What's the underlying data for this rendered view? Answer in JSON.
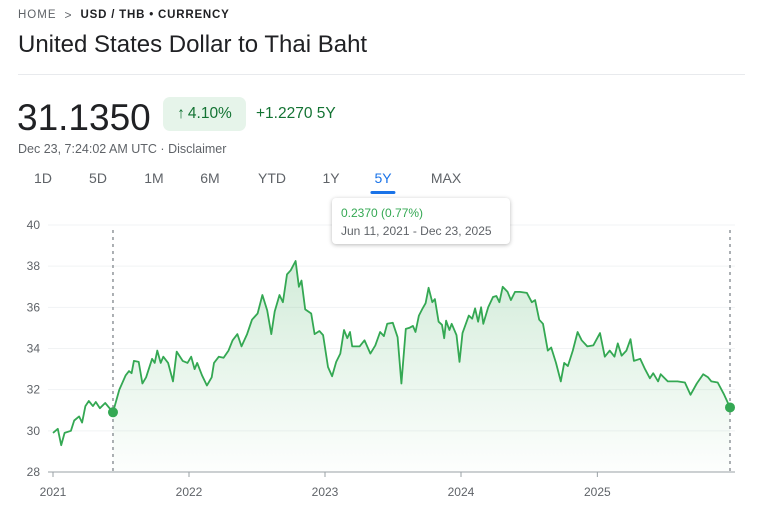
{
  "breadcrumb": {
    "home": "HOME",
    "separator": ">",
    "current": "USD / THB • CURRENCY"
  },
  "title": "United States Dollar to Thai Baht",
  "quote": {
    "price": "31.1350",
    "change_pct": "4.10%",
    "change_abs": "+1.2270 5Y",
    "timestamp": "Dec 23, 7:24:02 AM UTC",
    "disclaimer": "Disclaimer"
  },
  "tabs": [
    {
      "label": "1D"
    },
    {
      "label": "5D"
    },
    {
      "label": "1M"
    },
    {
      "label": "6M"
    },
    {
      "label": "YTD"
    },
    {
      "label": "1Y"
    },
    {
      "label": "5Y",
      "active": true
    },
    {
      "label": "MAX"
    }
  ],
  "tooltip": {
    "change": "0.2370 (0.77%)",
    "range": "Jun 11, 2021 - Dec 23, 2025"
  },
  "colors": {
    "line": "#34a853",
    "positive_text": "#137333",
    "accent": "#1a73e8",
    "badge_bg": "#e6f4ea"
  },
  "icons": {
    "breadcrumb_separator": "chevron-right-icon",
    "badge": "arrow-up-icon"
  },
  "chart_data": {
    "type": "area",
    "ylim": [
      28,
      40
    ],
    "y_ticks": [
      "28",
      "30",
      "32",
      "34",
      "36",
      "38",
      "40"
    ],
    "x_ticks": [
      {
        "label": "2021",
        "date": "2021-01-01"
      },
      {
        "label": "2022",
        "date": "2022-01-01"
      },
      {
        "label": "2023",
        "date": "2023-01-01"
      },
      {
        "label": "2024",
        "date": "2024-01-01"
      },
      {
        "label": "2025",
        "date": "2025-01-01"
      }
    ],
    "x_range": [
      "2021-01-01",
      "2025-12-23"
    ],
    "grid": true,
    "selection": {
      "start": {
        "date": "2021-06-11",
        "value": 30.9
      },
      "end": {
        "date": "2025-12-23",
        "value": 31.135
      }
    },
    "points": [
      [
        "2021-01-01",
        29.9
      ],
      [
        "2021-01-14",
        30.1
      ],
      [
        "2021-01-23",
        29.3
      ],
      [
        "2021-02-01",
        29.9
      ],
      [
        "2021-02-18",
        30.0
      ],
      [
        "2021-02-27",
        30.5
      ],
      [
        "2021-03-12",
        30.7
      ],
      [
        "2021-03-20",
        30.4
      ],
      [
        "2021-03-29",
        31.2
      ],
      [
        "2021-04-07",
        31.45
      ],
      [
        "2021-04-18",
        31.2
      ],
      [
        "2021-04-26",
        31.4
      ],
      [
        "2021-05-07",
        31.1
      ],
      [
        "2021-05-21",
        31.35
      ],
      [
        "2021-06-11",
        30.9
      ],
      [
        "2021-06-28",
        32.0
      ],
      [
        "2021-07-15",
        32.7
      ],
      [
        "2021-07-24",
        32.9
      ],
      [
        "2021-07-31",
        32.8
      ],
      [
        "2021-08-06",
        33.4
      ],
      [
        "2021-08-19",
        33.35
      ],
      [
        "2021-08-29",
        32.3
      ],
      [
        "2021-09-08",
        32.6
      ],
      [
        "2021-09-24",
        33.5
      ],
      [
        "2021-10-01",
        33.3
      ],
      [
        "2021-10-08",
        33.9
      ],
      [
        "2021-10-17",
        33.3
      ],
      [
        "2021-10-24",
        33.6
      ],
      [
        "2021-11-06",
        33.3
      ],
      [
        "2021-11-19",
        32.4
      ],
      [
        "2021-11-29",
        33.85
      ],
      [
        "2021-12-15",
        33.4
      ],
      [
        "2021-12-28",
        33.3
      ],
      [
        "2022-01-07",
        33.6
      ],
      [
        "2022-01-16",
        33.0
      ],
      [
        "2022-01-23",
        33.3
      ],
      [
        "2022-02-05",
        32.7
      ],
      [
        "2022-02-18",
        32.2
      ],
      [
        "2022-03-03",
        32.6
      ],
      [
        "2022-03-09",
        33.3
      ],
      [
        "2022-03-22",
        33.6
      ],
      [
        "2022-04-04",
        33.55
      ],
      [
        "2022-04-17",
        33.9
      ],
      [
        "2022-04-28",
        34.4
      ],
      [
        "2022-05-11",
        34.7
      ],
      [
        "2022-05-22",
        34.1
      ],
      [
        "2022-06-06",
        34.7
      ],
      [
        "2022-06-19",
        35.4
      ],
      [
        "2022-07-04",
        35.7
      ],
      [
        "2022-07-17",
        36.6
      ],
      [
        "2022-07-30",
        35.85
      ],
      [
        "2022-08-10",
        34.7
      ],
      [
        "2022-08-19",
        35.8
      ],
      [
        "2022-09-01",
        36.6
      ],
      [
        "2022-09-10",
        36.25
      ],
      [
        "2022-09-21",
        37.6
      ],
      [
        "2022-10-01",
        37.8
      ],
      [
        "2022-10-14",
        38.25
      ],
      [
        "2022-10-23",
        37.0
      ],
      [
        "2022-10-30",
        37.3
      ],
      [
        "2022-11-09",
        35.9
      ],
      [
        "2022-11-25",
        35.7
      ],
      [
        "2022-12-04",
        34.7
      ],
      [
        "2022-12-17",
        34.85
      ],
      [
        "2022-12-27",
        34.65
      ],
      [
        "2023-01-09",
        33.1
      ],
      [
        "2023-01-20",
        32.65
      ],
      [
        "2023-01-31",
        33.35
      ],
      [
        "2023-02-11",
        33.75
      ],
      [
        "2023-02-21",
        34.9
      ],
      [
        "2023-03-02",
        34.5
      ],
      [
        "2023-03-09",
        34.8
      ],
      [
        "2023-03-15",
        34.1
      ],
      [
        "2023-04-04",
        34.1
      ],
      [
        "2023-04-17",
        34.4
      ],
      [
        "2023-05-03",
        33.75
      ],
      [
        "2023-05-16",
        34.15
      ],
      [
        "2023-05-29",
        34.8
      ],
      [
        "2023-06-08",
        34.6
      ],
      [
        "2023-06-17",
        35.2
      ],
      [
        "2023-07-02",
        35.25
      ],
      [
        "2023-07-15",
        34.55
      ],
      [
        "2023-07-25",
        32.3
      ],
      [
        "2023-08-06",
        34.95
      ],
      [
        "2023-08-15",
        35.0
      ],
      [
        "2023-08-25",
        35.1
      ],
      [
        "2023-09-01",
        34.8
      ],
      [
        "2023-09-10",
        35.6
      ],
      [
        "2023-09-20",
        35.95
      ],
      [
        "2023-09-28",
        36.2
      ],
      [
        "2023-10-06",
        36.95
      ],
      [
        "2023-10-16",
        36.25
      ],
      [
        "2023-10-23",
        36.4
      ],
      [
        "2023-11-02",
        35.3
      ],
      [
        "2023-11-11",
        35.15
      ],
      [
        "2023-11-17",
        34.5
      ],
      [
        "2023-11-22",
        35.35
      ],
      [
        "2023-12-01",
        34.9
      ],
      [
        "2023-12-07",
        35.2
      ],
      [
        "2023-12-20",
        34.65
      ],
      [
        "2023-12-28",
        33.35
      ],
      [
        "2024-01-05",
        34.75
      ],
      [
        "2024-01-15",
        35.25
      ],
      [
        "2024-01-22",
        35.6
      ],
      [
        "2024-01-31",
        35.45
      ],
      [
        "2024-02-08",
        35.95
      ],
      [
        "2024-02-16",
        35.3
      ],
      [
        "2024-02-24",
        36.0
      ],
      [
        "2024-03-01",
        35.2
      ],
      [
        "2024-03-14",
        36.0
      ],
      [
        "2024-03-27",
        36.5
      ],
      [
        "2024-04-05",
        36.55
      ],
      [
        "2024-04-13",
        36.25
      ],
      [
        "2024-04-22",
        37.0
      ],
      [
        "2024-05-05",
        36.75
      ],
      [
        "2024-05-14",
        36.35
      ],
      [
        "2024-05-25",
        36.75
      ],
      [
        "2024-06-07",
        36.75
      ],
      [
        "2024-06-26",
        36.7
      ],
      [
        "2024-07-09",
        36.25
      ],
      [
        "2024-07-18",
        36.35
      ],
      [
        "2024-07-29",
        35.4
      ],
      [
        "2024-08-08",
        35.2
      ],
      [
        "2024-08-21",
        33.9
      ],
      [
        "2024-08-30",
        34.05
      ],
      [
        "2024-09-12",
        33.3
      ],
      [
        "2024-09-25",
        32.4
      ],
      [
        "2024-10-04",
        33.3
      ],
      [
        "2024-10-14",
        33.15
      ],
      [
        "2024-10-27",
        33.9
      ],
      [
        "2024-11-09",
        34.8
      ],
      [
        "2024-11-20",
        34.4
      ],
      [
        "2024-12-05",
        34.1
      ],
      [
        "2024-12-21",
        34.15
      ],
      [
        "2025-01-08",
        34.75
      ],
      [
        "2025-01-21",
        33.6
      ],
      [
        "2025-02-03",
        33.9
      ],
      [
        "2025-02-16",
        33.6
      ],
      [
        "2025-02-25",
        34.25
      ],
      [
        "2025-03-07",
        33.65
      ],
      [
        "2025-03-20",
        33.9
      ],
      [
        "2025-03-31",
        34.45
      ],
      [
        "2025-04-09",
        33.4
      ],
      [
        "2025-04-26",
        33.5
      ],
      [
        "2025-05-09",
        33.0
      ],
      [
        "2025-05-22",
        32.55
      ],
      [
        "2025-05-31",
        32.8
      ],
      [
        "2025-06-13",
        32.4
      ],
      [
        "2025-06-20",
        32.75
      ],
      [
        "2025-07-09",
        32.4
      ],
      [
        "2025-08-04",
        32.4
      ],
      [
        "2025-08-24",
        32.35
      ],
      [
        "2025-09-08",
        31.75
      ],
      [
        "2025-09-25",
        32.3
      ],
      [
        "2025-10-12",
        32.75
      ],
      [
        "2025-10-25",
        32.6
      ],
      [
        "2025-11-03",
        32.4
      ],
      [
        "2025-11-20",
        32.35
      ],
      [
        "2025-12-06",
        31.8
      ],
      [
        "2025-12-23",
        31.135
      ]
    ]
  }
}
